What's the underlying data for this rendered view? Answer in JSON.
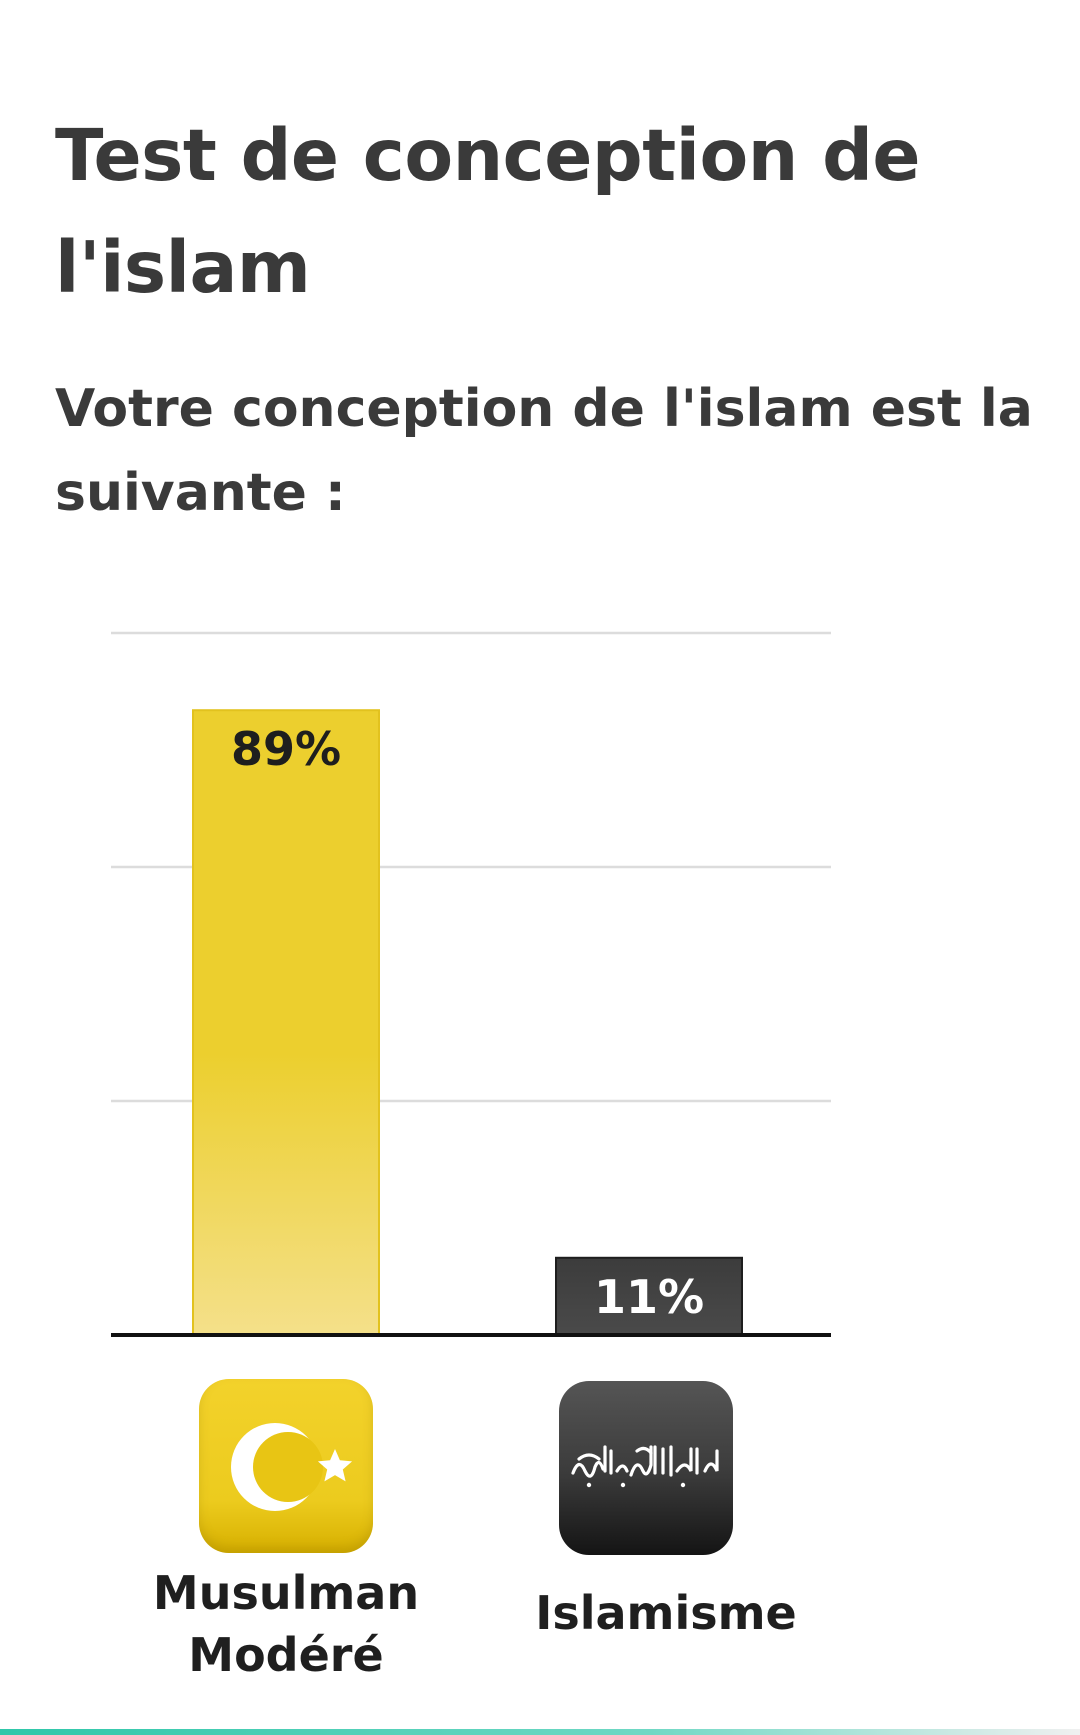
{
  "page": {
    "title": "Test de conception de l'islam",
    "subtitle": "Votre conception de l'islam est la suivante :"
  },
  "chart_data": {
    "type": "bar",
    "title": "",
    "xlabel": "",
    "ylabel": "",
    "categories": [
      "Musulman Modéré",
      "Islamisme"
    ],
    "values": [
      89,
      11
    ],
    "value_labels": [
      "89%",
      "11%"
    ],
    "unit": "%",
    "ylim": [
      0,
      100
    ],
    "grid": true,
    "legend": "none",
    "colors": {
      "moderate": "#eccf2e",
      "islamism": "#3c3c3c",
      "gridline": "#dcdcdc",
      "baseline": "#111111"
    },
    "category_icons": [
      "crescent-star-icon",
      "shahada-flag-icon"
    ]
  }
}
